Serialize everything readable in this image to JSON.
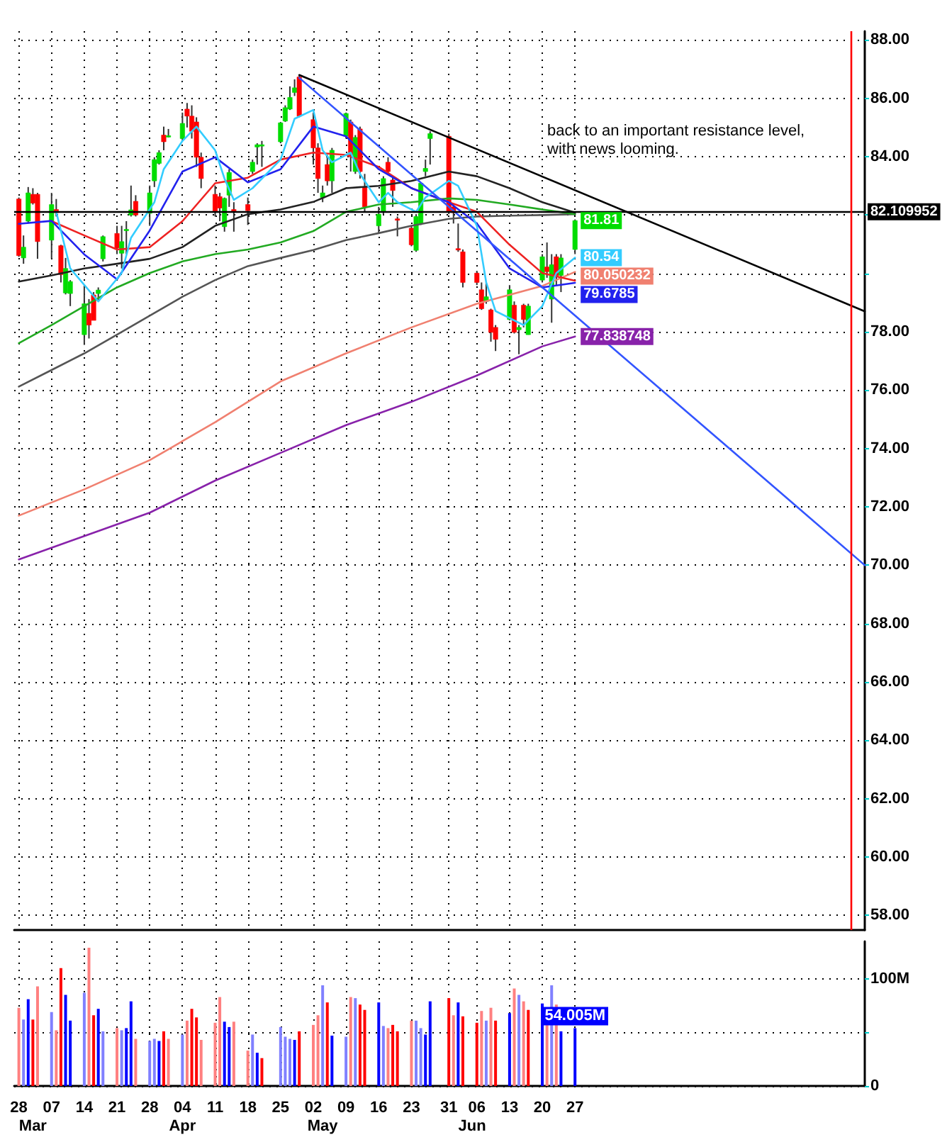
{
  "chart_data": [
    {
      "type": "candlestick",
      "xlim": [
        "--02-27",
        "--08-28"
      ],
      "ylim": [
        57.5,
        88.3
      ],
      "xticks": [
        {
          "value": "--02-28",
          "label": "28"
        },
        {
          "value": "--03-07",
          "label": "07"
        },
        {
          "value": "--03-14",
          "label": "14"
        },
        {
          "value": "--03-21",
          "label": "21"
        },
        {
          "value": "--03-28",
          "label": "28"
        },
        {
          "value": "--04-04",
          "label": "04"
        },
        {
          "value": "--04-11",
          "label": "11"
        },
        {
          "value": "--04-18",
          "label": "18"
        },
        {
          "value": "--04-25",
          "label": "25"
        },
        {
          "value": "--05-02",
          "label": "02"
        },
        {
          "value": "--05-09",
          "label": "09"
        },
        {
          "value": "--05-16",
          "label": "16"
        },
        {
          "value": "--05-23",
          "label": "23"
        },
        {
          "value": "--05-31",
          "label": "31"
        },
        {
          "value": "--06-06",
          "label": "06"
        },
        {
          "value": "--06-13",
          "label": "13"
        },
        {
          "value": "--06-20",
          "label": "20"
        },
        {
          "value": "--06-27",
          "label": "27"
        }
      ],
      "yticks": [
        {
          "value": 58,
          "label": "58.00"
        },
        {
          "value": 60,
          "label": "60.00"
        },
        {
          "value": 62,
          "label": "62.00"
        },
        {
          "value": 64,
          "label": "64.00"
        },
        {
          "value": 66,
          "label": "66.00"
        },
        {
          "value": 68,
          "label": "68.00"
        },
        {
          "value": 70,
          "label": "70.00"
        },
        {
          "value": 72,
          "label": "72.00"
        },
        {
          "value": 74,
          "label": "74.00"
        },
        {
          "value": 76,
          "label": "76.00"
        },
        {
          "value": 78,
          "label": "78.00"
        },
        {
          "value": 80,
          "label": null
        },
        {
          "value": 82,
          "label": null
        },
        {
          "value": 84,
          "label": "84.00"
        },
        {
          "value": 86,
          "label": "86.00"
        },
        {
          "value": 88,
          "label": "88.00"
        }
      ],
      "tick_labels": "y",
      "grid": true,
      "annotations": [
        "back to an important resistance level, with news looming."
      ],
      "ref_lines": [
        {
          "axis": "y",
          "value": 82.109952,
          "label": "82.109952",
          "color": "#000000"
        },
        {
          "axis": "x",
          "value": "--08-25",
          "color": "#ff0000"
        }
      ],
      "series": [
        {
          "type": "candlestick",
          "x": [
            "--02-28",
            "--03-01",
            "--03-02",
            "--03-03",
            "--03-04",
            "--03-07",
            "--03-08",
            "--03-09",
            "--03-10",
            "--03-11",
            "--03-14",
            "--03-15",
            "--03-16",
            "--03-17",
            "--03-18",
            "--03-21",
            "--03-22",
            "--03-23",
            "--03-24",
            "--03-25",
            "--03-28",
            "--03-29",
            "--03-30",
            "--03-31",
            "--04-01",
            "--04-04",
            "--04-05",
            "--04-06",
            "--04-07",
            "--04-08",
            "--04-11",
            "--04-12",
            "--04-13",
            "--04-14",
            "--04-15",
            "--04-18",
            "--04-19",
            "--04-20",
            "--04-21",
            "--04-25",
            "--04-26",
            "--04-27",
            "--04-28",
            "--04-29",
            "--05-02",
            "--05-03",
            "--05-04",
            "--05-05",
            "--05-06",
            "--05-09",
            "--05-10",
            "--05-11",
            "--05-12",
            "--05-13",
            "--05-16",
            "--05-17",
            "--05-18",
            "--05-19",
            "--05-20",
            "--05-23",
            "--05-24",
            "--05-25",
            "--05-26",
            "--05-27",
            "--05-31",
            "--06-01",
            "--06-02",
            "--06-03",
            "--06-06",
            "--06-07",
            "--06-08",
            "--06-09",
            "--06-10",
            "--06-13",
            "--06-14",
            "--06-15",
            "--06-16",
            "--06-17",
            "--06-20",
            "--06-21",
            "--06-22",
            "--06-23",
            "--06-24",
            "--06-27"
          ],
          "ohlc": [
            [
              82.55,
              82.6,
              80.57,
              80.61
            ],
            [
              80.53,
              81.3,
              80.33,
              80.9
            ],
            [
              81.79,
              82.96,
              81.71,
              82.76
            ],
            [
              82.71,
              82.92,
              82.36,
              82.41
            ],
            [
              82.71,
              82.76,
              80.5,
              81.09
            ],
            [
              81.14,
              82.76,
              80.5,
              82.36
            ],
            [
              82.19,
              82.55,
              81.95,
              82.08
            ],
            [
              80.95,
              80.98,
              79.69,
              79.96
            ],
            [
              79.33,
              80.53,
              79.28,
              80.17
            ],
            [
              79.31,
              79.77,
              78.88,
              79.72
            ],
            [
              77.9,
              79.6,
              77.55,
              78.96
            ],
            [
              78.63,
              79.12,
              77.77,
              78.23
            ],
            [
              79.26,
              79.36,
              78.39,
              78.39
            ],
            [
              79.31,
              79.52,
              79.04,
              79.43
            ],
            [
              80.5,
              81.3,
              80.41,
              81.26
            ],
            [
              81.37,
              81.63,
              80.66,
              80.87
            ],
            [
              80.69,
              81.63,
              80.17,
              81.09
            ],
            [
              81.47,
              81.79,
              80.66,
              81.51
            ],
            [
              82.0,
              83.01,
              81.95,
              82.18
            ],
            [
              82.47,
              82.68,
              81.95,
              82.0
            ],
            [
              82.06,
              83.01,
              81.63,
              82.76
            ],
            [
              83.17,
              83.98,
              82.96,
              83.9
            ],
            [
              83.77,
              84.22,
              83.73,
              84.14
            ],
            [
              84.74,
              85.03,
              84.22,
              84.51
            ],
            [
              84.7,
              84.95,
              84.66,
              84.72
            ],
            [
              84.62,
              85.51,
              84.54,
              85.14
            ],
            [
              85.63,
              85.84,
              85.0,
              85.39
            ],
            [
              85.39,
              85.76,
              84.62,
              84.87
            ],
            [
              85.19,
              85.35,
              83.65,
              83.98
            ],
            [
              83.98,
              84.14,
              82.92,
              83.25
            ],
            [
              82.71,
              83.01,
              81.95,
              82.11
            ],
            [
              82.63,
              82.76,
              81.79,
              82.24
            ],
            [
              81.6,
              82.6,
              81.43,
              82.57
            ],
            [
              82.68,
              83.57,
              82.28,
              83.46
            ],
            [
              82.19,
              82.44,
              81.43,
              82.11
            ],
            [
              82.36,
              82.6,
              81.66,
              82.15
            ],
            [
              83.49,
              83.9,
              83.41,
              83.81
            ],
            [
              84.33,
              84.46,
              83.73,
              84.41
            ],
            [
              84.39,
              84.54,
              83.65,
              84.41
            ],
            [
              84.51,
              85.19,
              84.46,
              85.16
            ],
            [
              85.22,
              85.76,
              85.19,
              85.68
            ],
            [
              85.63,
              86.41,
              85.6,
              86.03
            ],
            [
              86.2,
              86.65,
              86.08,
              86.36
            ],
            [
              86.73,
              86.81,
              85.35,
              85.39
            ],
            [
              85.27,
              85.51,
              83.73,
              84.3
            ],
            [
              84.3,
              84.46,
              82.76,
              83.25
            ],
            [
              82.6,
              83.01,
              82.44,
              82.76
            ],
            [
              83.73,
              84.06,
              83.01,
              83.17
            ],
            [
              83.17,
              84.3,
              82.76,
              84.22
            ],
            [
              84.7,
              85.51,
              84.62,
              85.48
            ],
            [
              85.19,
              85.27,
              83.49,
              84.06
            ],
            [
              83.49,
              84.74,
              83.41,
              84.66
            ],
            [
              84.95,
              85.03,
              83.25,
              83.49
            ],
            [
              82.96,
              83.41,
              82.11,
              82.28
            ],
            [
              81.63,
              82.28,
              81.38,
              82.03
            ],
            [
              82.11,
              83.33,
              82.03,
              83.25
            ],
            [
              83.81,
              83.98,
              83.41,
              83.49
            ],
            [
              83.2,
              83.33,
              82.28,
              82.84
            ],
            [
              81.87,
              81.95,
              81.27,
              81.82
            ],
            [
              81.55,
              81.63,
              80.93,
              80.98
            ],
            [
              80.79,
              82.03,
              80.74,
              81.95
            ],
            [
              81.71,
              83.09,
              81.66,
              83.09
            ],
            [
              83.49,
              83.9,
              83.33,
              83.6
            ],
            [
              84.62,
              84.87,
              83.73,
              84.79
            ],
            [
              84.7,
              84.79,
              82.03,
              82.11
            ],
            [
              82.28,
              82.36,
              81.71,
              82.08
            ],
            [
              80.85,
              81.71,
              80.74,
              80.82
            ],
            [
              80.74,
              80.82,
              79.52,
              79.69
            ],
            [
              80.01,
              80.09,
              79.6,
              79.69
            ],
            [
              79.44,
              79.69,
              78.75,
              78.79
            ],
            [
              79.04,
              79.69,
              78.96,
              79.2
            ],
            [
              78.75,
              78.79,
              77.66,
              77.98
            ],
            [
              78.15,
              78.23,
              77.34,
              77.74
            ],
            [
              78.42,
              79.6,
              78.39,
              79.44
            ],
            [
              78.91,
              79.04,
              77.94,
              77.98
            ],
            [
              78.07,
              78.23,
              77.23,
              78.15
            ],
            [
              78.91,
              78.96,
              78.15,
              78.42
            ],
            [
              77.9,
              78.96,
              77.9,
              78.88
            ],
            [
              79.77,
              80.66,
              79.69,
              80.57
            ],
            [
              80.22,
              81.06,
              79.85,
              80.06
            ],
            [
              79.12,
              80.66,
              78.31,
              80.3
            ],
            [
              80.57,
              80.66,
              79.6,
              79.93
            ],
            [
              79.93,
              80.66,
              79.36,
              80.53
            ],
            [
              80.82,
              81.85,
              80.66,
              81.81
            ]
          ],
          "colors": [
            "#ff0000",
            "#00dd00",
            "#00dd00",
            "#ff0000",
            "#ff0000",
            "#00dd00",
            "#ff0000",
            "#ff0000",
            "#00dd00",
            "#00dd00",
            "#00dd00",
            "#ff0000",
            "#ff0000",
            "#00dd00",
            "#00dd00",
            "#ff0000",
            "#00dd00",
            "#00dd00",
            "#00dd00",
            "#ff0000",
            "#00dd00",
            "#00dd00",
            "#00dd00",
            "#ff0000",
            "#00dd00",
            "#00dd00",
            "#ff0000",
            "#ff0000",
            "#ff0000",
            "#ff0000",
            "#ff0000",
            "#ff0000",
            "#00dd00",
            "#00dd00",
            "#ff0000",
            "#ff0000",
            "#00dd00",
            "#00dd00",
            "#00dd00",
            "#00dd00",
            "#00dd00",
            "#00dd00",
            "#00dd00",
            "#ff0000",
            "#ff0000",
            "#ff0000",
            "#00dd00",
            "#ff0000",
            "#00dd00",
            "#00dd00",
            "#ff0000",
            "#00dd00",
            "#ff0000",
            "#ff0000",
            "#00dd00",
            "#00dd00",
            "#ff0000",
            "#ff0000",
            "#ff0000",
            "#ff0000",
            "#00dd00",
            "#00dd00",
            "#00dd00",
            "#00dd00",
            "#ff0000",
            "#ff0000",
            "#ff0000",
            "#ff0000",
            "#ff0000",
            "#ff0000",
            "#00dd00",
            "#ff0000",
            "#ff0000",
            "#00dd00",
            "#ff0000",
            "#00dd00",
            "#ff0000",
            "#00dd00",
            "#00dd00",
            "#ff0000",
            "#00dd00",
            "#ff0000",
            "#00dd00",
            "#00dd00"
          ],
          "value_labels": [
            null,
            null,
            null,
            null,
            null,
            null,
            null,
            null,
            null,
            null,
            null,
            null,
            null,
            null,
            null,
            null,
            null,
            null,
            null,
            null,
            null,
            null,
            null,
            null,
            null,
            null,
            null,
            null,
            null,
            null,
            null,
            null,
            null,
            null,
            null,
            null,
            null,
            null,
            null,
            null,
            null,
            null,
            null,
            null,
            null,
            null,
            null,
            null,
            null,
            null,
            null,
            null,
            null,
            null,
            null,
            null,
            null,
            null,
            null,
            null,
            null,
            null,
            null,
            null,
            null,
            null,
            null,
            null,
            null,
            null,
            null,
            null,
            null,
            null,
            null,
            null,
            null,
            null,
            null,
            null,
            null,
            null,
            null,
            "81.81"
          ]
        },
        {
          "type": "line",
          "color": "#8822aa",
          "x": [
            "--02-28",
            "--03-14",
            "--03-28",
            "--04-11",
            "--04-25",
            "--05-09",
            "--05-23",
            "--06-06",
            "--06-20",
            "--06-27"
          ],
          "values": [
            70.2,
            71.0,
            71.8,
            72.9,
            73.85,
            74.8,
            75.6,
            76.5,
            77.5,
            77.838748
          ],
          "value_labels": [
            null,
            null,
            null,
            null,
            null,
            null,
            null,
            null,
            null,
            "77.838748"
          ]
        },
        {
          "type": "line",
          "color": "#f08070",
          "x": [
            "--02-28",
            "--03-14",
            "--03-28",
            "--04-11",
            "--04-25",
            "--05-09",
            "--05-23",
            "--06-06",
            "--06-20",
            "--06-27"
          ],
          "values": [
            71.7,
            72.6,
            73.6,
            74.9,
            76.3,
            77.26,
            78.15,
            78.96,
            79.57,
            80.050232
          ],
          "value_labels": [
            null,
            null,
            null,
            null,
            null,
            null,
            null,
            null,
            null,
            "80.050232"
          ]
        },
        {
          "type": "line",
          "color": "#555555",
          "x": [
            "--02-28",
            "--03-07",
            "--03-14",
            "--03-21",
            "--03-28",
            "--04-04",
            "--04-11",
            "--04-18",
            "--04-25",
            "--05-02",
            "--05-09",
            "--05-16",
            "--05-23",
            "--05-31",
            "--06-06",
            "--06-13",
            "--06-20",
            "--06-27"
          ],
          "values": [
            76.12,
            76.69,
            77.26,
            77.9,
            78.55,
            79.2,
            79.77,
            80.25,
            80.53,
            80.8,
            81.14,
            81.38,
            81.63,
            81.87,
            81.95,
            81.98,
            82.0,
            82.03
          ]
        },
        {
          "type": "line",
          "color": "#22aa22",
          "x": [
            "--02-28",
            "--03-07",
            "--03-14",
            "--03-21",
            "--03-28",
            "--04-04",
            "--04-11",
            "--04-18",
            "--04-25",
            "--05-02",
            "--05-09",
            "--05-16",
            "--05-23",
            "--05-31",
            "--06-06",
            "--06-13",
            "--06-20",
            "--06-27"
          ],
          "values": [
            77.61,
            78.23,
            78.88,
            79.52,
            80.01,
            80.41,
            80.66,
            80.82,
            81.06,
            81.45,
            82.11,
            82.36,
            82.44,
            82.57,
            82.52,
            82.36,
            82.19,
            82.03
          ]
        },
        {
          "type": "line",
          "color": "#222222",
          "x": [
            "--02-28",
            "--03-07",
            "--03-14",
            "--03-21",
            "--03-28",
            "--04-04",
            "--04-11",
            "--04-18",
            "--04-25",
            "--05-02",
            "--05-09",
            "--05-16",
            "--05-23",
            "--05-31",
            "--06-06",
            "--06-13",
            "--06-20",
            "--06-27"
          ],
          "values": [
            79.72,
            79.93,
            80.17,
            80.33,
            80.5,
            80.9,
            81.63,
            82.03,
            82.19,
            82.45,
            82.92,
            83.0,
            83.17,
            83.49,
            83.33,
            82.92,
            82.44,
            82.08
          ]
        },
        {
          "type": "line",
          "color": "#ee2222",
          "x": [
            "--03-07",
            "--03-14",
            "--03-21",
            "--03-28",
            "--04-04",
            "--04-11",
            "--04-18",
            "--04-25",
            "--05-02",
            "--05-09",
            "--05-16",
            "--05-23",
            "--05-31",
            "--06-06",
            "--06-13",
            "--06-20",
            "--06-27"
          ],
          "values": [
            81.79,
            81.3,
            80.82,
            80.9,
            81.79,
            83.09,
            83.28,
            83.9,
            84.14,
            84.06,
            83.65,
            82.92,
            82.44,
            82.11,
            80.98,
            80.01,
            79.75
          ]
        },
        {
          "type": "line",
          "color": "#2222ee",
          "x": [
            "--02-28",
            "--03-07",
            "--03-14",
            "--03-21",
            "--03-28",
            "--04-04",
            "--04-11",
            "--04-18",
            "--04-25",
            "--05-02",
            "--05-09",
            "--05-16",
            "--05-23",
            "--05-31",
            "--06-06",
            "--06-13",
            "--06-20",
            "--06-27"
          ],
          "values": [
            81.7,
            81.8,
            80.65,
            79.8,
            81.47,
            83.49,
            83.98,
            83.12,
            83.57,
            85.03,
            84.7,
            83.57,
            82.92,
            82.44,
            81.71,
            80.17,
            79.52,
            79.6785
          ],
          "value_labels": [
            null,
            null,
            null,
            null,
            null,
            null,
            null,
            null,
            null,
            null,
            null,
            null,
            null,
            null,
            null,
            null,
            null,
            "79.6785"
          ]
        },
        {
          "type": "line",
          "color": "#33ccff",
          "x": [
            "--03-08",
            "--03-11",
            "--03-17",
            "--03-22",
            "--03-24",
            "--03-29",
            "--03-31",
            "--04-04",
            "--04-07",
            "--04-11",
            "--04-13",
            "--04-15",
            "--04-19",
            "--04-25",
            "--04-28",
            "--05-02",
            "--05-04",
            "--05-06",
            "--05-10",
            "--05-12",
            "--05-16",
            "--05-18",
            "--05-20",
            "--05-24",
            "--05-26",
            "--05-31",
            "--06-02",
            "--06-06",
            "--06-08",
            "--06-10",
            "--06-14",
            "--06-16",
            "--06-20",
            "--06-23",
            "--06-27"
          ],
          "values": [
            82.11,
            80.17,
            79.04,
            80.01,
            81.22,
            82.44,
            83.57,
            84.54,
            85.03,
            84.22,
            83.25,
            82.52,
            82.92,
            83.9,
            85.3,
            85.6,
            84.22,
            83.81,
            84.14,
            83.41,
            82.44,
            82.76,
            82.44,
            82.11,
            82.6,
            83.17,
            83.0,
            81.63,
            79.69,
            78.71,
            78.39,
            78.23,
            78.88,
            80.01,
            80.54
          ],
          "value_labels": [
            null,
            null,
            null,
            null,
            null,
            null,
            null,
            null,
            null,
            null,
            null,
            null,
            null,
            null,
            null,
            null,
            null,
            null,
            null,
            null,
            null,
            null,
            null,
            null,
            null,
            null,
            null,
            null,
            null,
            null,
            null,
            null,
            null,
            null,
            "80.54"
          ]
        },
        {
          "type": "line",
          "color": "#000000",
          "x": [
            "--04-29",
            "--08-28"
          ],
          "values": [
            86.8,
            78.7
          ]
        },
        {
          "type": "line",
          "color": "#3355ff",
          "x": [
            "--04-29",
            "--08-28"
          ],
          "values": [
            86.7,
            70.0
          ]
        }
      ]
    },
    {
      "type": "bar",
      "xlim": [
        "--02-27",
        "--08-28"
      ],
      "ylim": [
        0,
        135
      ],
      "xticks": [
        {
          "value": "--02-28",
          "label": "28"
        },
        {
          "value": "--03-07",
          "label": "07"
        },
        {
          "value": "--03-14",
          "label": "14"
        },
        {
          "value": "--03-21",
          "label": "21"
        },
        {
          "value": "--03-28",
          "label": "28"
        },
        {
          "value": "--04-04",
          "label": "04"
        },
        {
          "value": "--04-11",
          "label": "11"
        },
        {
          "value": "--04-18",
          "label": "18"
        },
        {
          "value": "--04-25",
          "label": "25"
        },
        {
          "value": "--05-02",
          "label": "02"
        },
        {
          "value": "--05-09",
          "label": "09"
        },
        {
          "value": "--05-16",
          "label": "16"
        },
        {
          "value": "--05-23",
          "label": "23"
        },
        {
          "value": "--05-31",
          "label": "31"
        },
        {
          "value": "--06-06",
          "label": "06"
        },
        {
          "value": "--06-13",
          "label": "13"
        },
        {
          "value": "--06-20",
          "label": "20"
        },
        {
          "value": "--06-27",
          "label": "27"
        }
      ],
      "x2lim": [
        "--02-27",
        "--08-28"
      ],
      "x2ticks": [
        {
          "value": "--03-03",
          "label": "Mar"
        },
        {
          "value": "--04-04",
          "label": "Apr"
        },
        {
          "value": "--05-04",
          "label": "May"
        },
        {
          "value": "--06-05",
          "label": "Jun"
        }
      ],
      "yticks": [
        {
          "value": 0,
          "label": "0"
        },
        {
          "value": 50,
          "label": null
        },
        {
          "value": 100,
          "label": "100M"
        }
      ],
      "grid": true,
      "x": [
        "--02-28",
        "--03-01",
        "--03-02",
        "--03-03",
        "--03-04",
        "--03-07",
        "--03-08",
        "--03-09",
        "--03-10",
        "--03-11",
        "--03-14",
        "--03-15",
        "--03-16",
        "--03-17",
        "--03-18",
        "--03-21",
        "--03-22",
        "--03-23",
        "--03-24",
        "--03-25",
        "--03-28",
        "--03-29",
        "--03-30",
        "--03-31",
        "--04-01",
        "--04-04",
        "--04-05",
        "--04-06",
        "--04-07",
        "--04-08",
        "--04-11",
        "--04-12",
        "--04-13",
        "--04-14",
        "--04-15",
        "--04-18",
        "--04-19",
        "--04-20",
        "--04-21",
        "--04-25",
        "--04-26",
        "--04-27",
        "--04-28",
        "--04-29",
        "--05-02",
        "--05-03",
        "--05-04",
        "--05-05",
        "--05-06",
        "--05-09",
        "--05-10",
        "--05-11",
        "--05-12",
        "--05-13",
        "--05-16",
        "--05-17",
        "--05-18",
        "--05-19",
        "--05-20",
        "--05-23",
        "--05-24",
        "--05-25",
        "--05-26",
        "--05-27",
        "--05-31",
        "--06-01",
        "--06-02",
        "--06-03",
        "--06-06",
        "--06-07",
        "--06-08",
        "--06-09",
        "--06-10",
        "--06-13",
        "--06-14",
        "--06-15",
        "--06-16",
        "--06-17",
        "--06-20",
        "--06-21",
        "--06-22",
        "--06-23",
        "--06-24",
        "--06-27"
      ],
      "values": [
        73,
        62,
        81,
        62,
        93,
        69,
        52,
        110,
        85,
        61,
        87,
        129,
        66,
        72,
        51,
        54,
        52,
        54,
        79,
        44,
        42,
        44,
        42,
        51,
        44,
        48,
        61,
        72,
        64,
        43,
        59,
        83,
        60,
        55,
        60,
        33,
        48,
        31,
        26,
        55,
        46,
        44,
        43,
        51,
        57,
        66,
        94,
        78,
        47,
        46,
        83,
        82,
        76,
        71,
        78,
        56,
        54,
        57,
        51,
        61,
        61,
        54,
        48,
        79,
        82,
        66,
        78,
        65,
        59,
        70,
        61,
        73,
        61,
        68,
        91,
        85,
        79,
        71,
        77,
        57,
        94,
        76,
        51,
        54.005
      ],
      "colors": [
        "#ff8080",
        "#8080ff",
        "#0000ff",
        "#ff0000",
        "#ff8080",
        "#8080ff",
        "#ff8080",
        "#ff0000",
        "#0000ff",
        "#0000ff",
        "#8080ff",
        "#ff8080",
        "#ff0000",
        "#0000ff",
        "#8080ff",
        "#ff8080",
        "#8080ff",
        "#0000ff",
        "#0000ff",
        "#ff8080",
        "#8080ff",
        "#8080ff",
        "#0000ff",
        "#ff0000",
        "#ff8080",
        "#8080ff",
        "#ff8080",
        "#ff0000",
        "#ff0000",
        "#ff8080",
        "#ff8080",
        "#ff8080",
        "#0000ff",
        "#0000ff",
        "#ff8080",
        "#ff8080",
        "#8080ff",
        "#0000ff",
        "#ff0000",
        "#8080ff",
        "#8080ff",
        "#8080ff",
        "#0000ff",
        "#ff0000",
        "#ff8080",
        "#ff8080",
        "#8080ff",
        "#ff0000",
        "#0000ff",
        "#8080ff",
        "#ff8080",
        "#8080ff",
        "#ff0000",
        "#ff0000",
        "#0000ff",
        "#8080ff",
        "#ff8080",
        "#ff0000",
        "#ff0000",
        "#ff8080",
        "#8080ff",
        "#8080ff",
        "#0000ff",
        "#0000ff",
        "#ff0000",
        "#ff8080",
        "#0000ff",
        "#ff0000",
        "#ff0000",
        "#ff8080",
        "#8080ff",
        "#ff8080",
        "#ff0000",
        "#0000ff",
        "#ff8080",
        "#8080ff",
        "#ff8080",
        "#ff0000",
        "#0000ff",
        "#ff8080",
        "#8080ff",
        "#ff8080",
        "#0000ff",
        "#0000ff"
      ],
      "value_labels": [
        null,
        null,
        null,
        null,
        null,
        null,
        null,
        null,
        null,
        null,
        null,
        null,
        null,
        null,
        null,
        null,
        null,
        null,
        null,
        null,
        null,
        null,
        null,
        null,
        null,
        null,
        null,
        null,
        null,
        null,
        null,
        null,
        null,
        null,
        null,
        null,
        null,
        null,
        null,
        null,
        null,
        null,
        null,
        null,
        null,
        null,
        null,
        null,
        null,
        null,
        null,
        null,
        null,
        null,
        null,
        null,
        null,
        null,
        null,
        null,
        null,
        null,
        null,
        null,
        null,
        null,
        null,
        null,
        null,
        null,
        null,
        null,
        null,
        null,
        null,
        null,
        null,
        null,
        null,
        null,
        null,
        null,
        null,
        "54.005M"
      ]
    }
  ]
}
